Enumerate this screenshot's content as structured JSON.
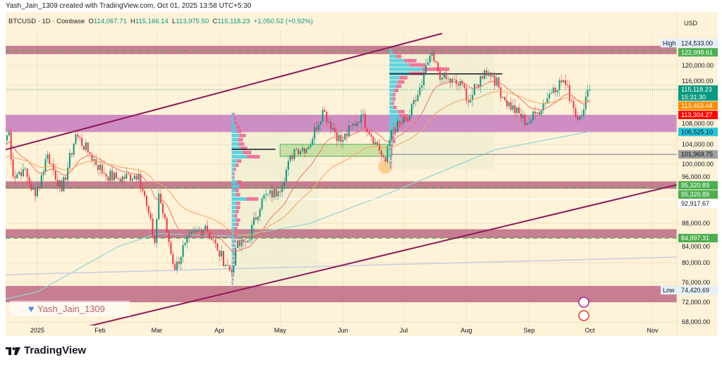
{
  "credit": "Yash_Jain_1309 created with TradingView.com, Oct 01, 2025 13:58 UTC+5:30",
  "legend": {
    "symbol": "BTCUSD · 1D · Coinbase",
    "o_label": "O",
    "o": "114,067.71",
    "h_label": "H",
    "h": "115,166.14",
    "l_label": "L",
    "l": "113,975.50",
    "c_label": "C",
    "c": "115,118.23",
    "change": "+1,050.52 (+0.92%)"
  },
  "currency": "USD",
  "watermark": "Yash_Jain_1309",
  "footer": {
    "brand": "TradingView"
  },
  "colors": {
    "up": "#089981",
    "down": "#f23645",
    "bg": "#fef2d8",
    "zone": "#b5577a",
    "purple_zone": "#c77dc0",
    "ema_fast": "#f0716b",
    "ema_slow": "#f5a55a",
    "ma_long": "#8fd6d6"
  },
  "chart_data": {
    "type": "candlestick",
    "symbol": "BTCUSD",
    "interval": "1D",
    "exchange": "Coinbase",
    "ylim": [
      67000,
      126500
    ],
    "xlim": [
      "2024-12-15",
      "2025-11-20"
    ],
    "x_ticks": [
      {
        "label": "2025",
        "date": "2025-01-01"
      },
      {
        "label": "Feb",
        "date": "2025-02-01"
      },
      {
        "label": "Mar",
        "date": "2025-03-01"
      },
      {
        "label": "Apr",
        "date": "2025-04-01"
      },
      {
        "label": "May",
        "date": "2025-05-01"
      },
      {
        "label": "Jun",
        "date": "2025-06-01"
      },
      {
        "label": "Jul",
        "date": "2025-07-01"
      },
      {
        "label": "Aug",
        "date": "2025-08-01"
      },
      {
        "label": "Sep",
        "date": "2025-09-01"
      },
      {
        "label": "Oct",
        "date": "2025-10-01"
      },
      {
        "label": "Nov",
        "date": "2025-11-01"
      }
    ],
    "y_ticks": [
      {
        "label": "120,000.00",
        "v": 120000
      },
      {
        "label": "116,000.00",
        "v": 116000
      },
      {
        "label": "108,000.00",
        "v": 108000
      },
      {
        "label": "104,000.00",
        "v": 104000
      },
      {
        "label": "100,000.00",
        "v": 100000
      },
      {
        "label": "96,000.00",
        "v": 96000
      },
      {
        "label": "88,000.00",
        "v": 88000
      },
      {
        "label": "84,000.00",
        "v": 84000
      },
      {
        "label": "80,000.00",
        "v": 80000
      },
      {
        "label": "76,000.00",
        "v": 76000
      },
      {
        "label": "72,000.00",
        "v": 72000
      },
      {
        "label": "68,000.00",
        "v": 68000
      }
    ],
    "price_labels": [
      {
        "label": "124,533.00",
        "tag": "High",
        "v": 124533,
        "bg": "#e3f0fb",
        "fg": "#131722"
      },
      {
        "label": "122,998.61",
        "v": 122998.61,
        "bg": "#4caf50",
        "fg": "#ffffff"
      },
      {
        "label": "115,118.23",
        "sub": "15:31:30",
        "v": 115118.23,
        "bg": "#089981",
        "fg": "#ffffff"
      },
      {
        "label": "113,463.44",
        "v": 113463.44,
        "bg": "#ff8c00",
        "fg": "#ffffff"
      },
      {
        "label": "113,304.27",
        "v": 113304.27,
        "bg": "#ff0000",
        "fg": "#ffffff"
      },
      {
        "label": "106,525.10",
        "v": 106525.1,
        "bg": "#26c6da",
        "fg": "#131722"
      },
      {
        "label": "101,969.75",
        "v": 101969.75,
        "bg": "#9e9e9e",
        "fg": "#131722"
      },
      {
        "label": "95,320.89",
        "v": 95700,
        "bg": "#4caf50",
        "fg": "#ffffff"
      },
      {
        "label": "95,320.89",
        "v": 94400,
        "bg": "#4caf50",
        "fg": "#ffffff"
      },
      {
        "label": "92,917.67",
        "v": 92917.67,
        "bg": "#ffffff",
        "fg": "#131722"
      },
      {
        "label": "84,997.31",
        "v": 84997.31,
        "bg": "#4caf50",
        "fg": "#ffffff"
      },
      {
        "label": "74,420.69",
        "tag": "Low",
        "v": 74420.69,
        "bg": "#e3f0fb",
        "fg": "#131722"
      }
    ],
    "close_anchors": [
      [
        "2024-12-15",
        104000
      ],
      [
        "2024-12-18",
        106500
      ],
      [
        "2024-12-20",
        97500
      ],
      [
        "2024-12-25",
        99000
      ],
      [
        "2024-12-31",
        93500
      ],
      [
        "2025-01-06",
        102000
      ],
      [
        "2025-01-13",
        94500
      ],
      [
        "2025-01-20",
        106000
      ],
      [
        "2025-01-27",
        102000
      ],
      [
        "2025-02-03",
        98000
      ],
      [
        "2025-02-10",
        97000
      ],
      [
        "2025-02-20",
        98000
      ],
      [
        "2025-02-24",
        91500
      ],
      [
        "2025-02-28",
        84000
      ],
      [
        "2025-03-02",
        94000
      ],
      [
        "2025-03-10",
        78500
      ],
      [
        "2025-03-15",
        84000
      ],
      [
        "2025-03-25",
        87500
      ],
      [
        "2025-03-31",
        82500
      ],
      [
        "2025-04-07",
        78000
      ],
      [
        "2025-04-09",
        83000
      ],
      [
        "2025-04-15",
        84500
      ],
      [
        "2025-04-22",
        93000
      ],
      [
        "2025-04-30",
        94500
      ],
      [
        "2025-05-08",
        103000
      ],
      [
        "2025-05-15",
        103500
      ],
      [
        "2025-05-22",
        111000
      ],
      [
        "2025-05-31",
        104500
      ],
      [
        "2025-06-10",
        110000
      ],
      [
        "2025-06-17",
        104500
      ],
      [
        "2025-06-22",
        100500
      ],
      [
        "2025-06-25",
        107000
      ],
      [
        "2025-07-03",
        109000
      ],
      [
        "2025-07-10",
        116000
      ],
      [
        "2025-07-14",
        122000
      ],
      [
        "2025-07-20",
        117500
      ],
      [
        "2025-07-31",
        115500
      ],
      [
        "2025-08-02",
        112500
      ],
      [
        "2025-08-10",
        119000
      ],
      [
        "2025-08-14",
        118000
      ],
      [
        "2025-08-20",
        113000
      ],
      [
        "2025-08-31",
        108300
      ],
      [
        "2025-09-05",
        110500
      ],
      [
        "2025-09-13",
        115500
      ],
      [
        "2025-09-18",
        117000
      ],
      [
        "2025-09-22",
        112800
      ],
      [
        "2025-09-25",
        109000
      ],
      [
        "2025-10-01",
        115118.23
      ]
    ],
    "ma_long_anchors": [
      [
        "2024-12-15",
        72500
      ],
      [
        "2025-01-01",
        74100
      ],
      [
        "2025-02-10",
        83300
      ],
      [
        "2025-03-01",
        85900
      ],
      [
        "2025-04-10",
        85400
      ],
      [
        "2025-05-15",
        87900
      ],
      [
        "2025-06-25",
        94300
      ],
      [
        "2025-08-15",
        102900
      ],
      [
        "2025-10-01",
        106600
      ]
    ],
    "zones": [
      {
        "from": 122300,
        "to": 124000,
        "kind": "resistance"
      },
      {
        "from": 106500,
        "to": 110000,
        "kind": "purple"
      },
      {
        "from": 95000,
        "to": 96500,
        "kind": "support"
      },
      {
        "from": 85000,
        "to": 86800,
        "kind": "support"
      },
      {
        "from": 72000,
        "to": 75300,
        "kind": "support"
      }
    ],
    "dashed_levels": [
      122998.61,
      95320.89,
      84997.31
    ],
    "trendlines": [
      {
        "p1": [
          "2024-12-15",
          102800
        ],
        "p2": [
          "2025-07-20",
          126500
        ]
      },
      {
        "p1": [
          "2025-01-25",
          67000
        ],
        "p2": [
          "2025-11-20",
          96500
        ]
      }
    ],
    "horizontal_lines": [
      {
        "v": 101969.75,
        "from": "2025-06-24",
        "color": "#9e9e9e"
      },
      {
        "v": 92917.67,
        "from": "2025-05-01",
        "color": "#ffffff"
      },
      {
        "v": 115118.23,
        "from": "2024-12-15",
        "color": "#089981",
        "dotted": true
      }
    ],
    "green_box": {
      "from": "2025-05-01",
      "to": "2025-06-25",
      "top": 104000,
      "bottom": 101600
    },
    "volume_profiles": [
      {
        "from": "2025-04-07",
        "to": "2025-05-20",
        "top": 110500,
        "bottom": 74500,
        "poc": 103000,
        "rows": [
          0.1,
          0.15,
          0.2,
          0.3,
          0.35,
          0.5,
          0.4,
          0.45,
          0.55,
          0.7,
          1.0,
          0.35,
          0.25,
          0.15,
          0.1,
          0.1,
          0.35,
          0.5,
          0.25,
          0.3,
          0.95,
          0.3,
          0.3,
          0.25,
          0.2,
          0.3,
          0.25,
          0.2,
          0.15,
          0.2,
          0.15,
          0.12,
          0.1,
          0.15,
          0.1,
          0.12,
          0.1,
          0.08,
          0.08,
          0.06,
          0.05,
          0.04
        ]
      },
      {
        "from": "2025-06-24",
        "to": "2025-08-15",
        "top": 124000,
        "bottom": 99000,
        "poc": 118300,
        "rows": [
          0.05,
          0.1,
          0.2,
          0.45,
          0.6,
          1.0,
          0.6,
          0.3,
          0.25,
          0.2,
          0.15,
          0.1,
          0.1,
          0.08,
          0.12,
          0.25,
          0.3,
          0.35,
          0.2,
          0.15,
          0.1,
          0.08,
          0.1,
          0.06,
          0.05,
          0.05,
          0.04,
          0.04,
          0.03
        ]
      }
    ]
  }
}
